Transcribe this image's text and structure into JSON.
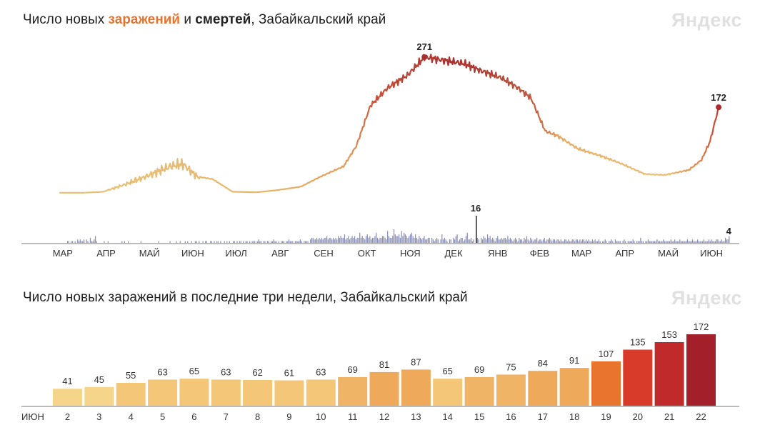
{
  "top_chart": {
    "title_part1": "Число новых ",
    "title_hl1": "заражений",
    "title_part2": " и ",
    "title_hl2": "смертей",
    "title_part3": ", Забайкальский край",
    "brand": "Яндекс",
    "infection_peak_label": "271",
    "infection_last_label": "172",
    "death_peak_label": "16",
    "death_last_label": "4",
    "months": [
      "МАР",
      "АПР",
      "МАЙ",
      "ИЮН",
      "ИЮЛ",
      "АВГ",
      "СЕН",
      "ОКТ",
      "НОЯ",
      "ДЕК",
      "ЯНВ",
      "ФЕВ",
      "МАР",
      "АПР",
      "МАЙ",
      "ИЮН"
    ]
  },
  "bottom_chart": {
    "title": "Число новых заражений в последние три недели, Забайкальский край",
    "brand": "Яндекс",
    "month_label": "ИЮН"
  },
  "colors": {
    "light": "#f5d58a",
    "mid": "#efa95a",
    "orange": "#e8742d",
    "red": "#d93b2b",
    "dark": "#a31f2a",
    "weekend": "#d13a2a",
    "deaths": "#8a8fb5"
  },
  "chart_data": [
    {
      "type": "line",
      "title": "Число новых заражений и смертей, Забайкальский край",
      "series": [
        {
          "name": "заражений",
          "x": [
            "2020-03-15",
            "2020-04-01",
            "2020-04-15",
            "2020-05-01",
            "2020-05-15",
            "2020-06-01",
            "2020-06-10",
            "2020-06-20",
            "2020-07-01",
            "2020-07-15",
            "2020-08-01",
            "2020-08-15",
            "2020-09-01",
            "2020-09-15",
            "2020-10-01",
            "2020-10-10",
            "2020-10-20",
            "2020-11-01",
            "2020-11-15",
            "2020-11-27",
            "2020-12-10",
            "2020-12-25",
            "2021-01-05",
            "2021-01-20",
            "2021-02-01",
            "2021-02-10",
            "2021-02-20",
            "2021-03-01",
            "2021-03-15",
            "2021-04-01",
            "2021-04-15",
            "2021-05-01",
            "2021-05-15",
            "2021-06-01",
            "2021-06-10",
            "2021-06-16",
            "2021-06-22"
          ],
          "values": [
            3,
            3,
            5,
            20,
            35,
            55,
            60,
            35,
            30,
            5,
            4,
            8,
            15,
            35,
            55,
            95,
            175,
            210,
            235,
            271,
            265,
            258,
            245,
            230,
            210,
            190,
            125,
            115,
            90,
            75,
            60,
            40,
            38,
            48,
            68,
            105,
            172
          ]
        },
        {
          "name": "смертей",
          "peak": 16,
          "last": 4,
          "values": [
            0,
            0,
            0,
            0,
            0,
            0,
            0,
            0,
            0,
            0,
            0,
            0,
            0,
            0,
            0,
            0,
            0,
            0,
            0,
            0,
            0,
            0,
            1,
            1,
            0,
            1,
            1,
            0,
            1,
            0,
            2,
            1,
            2,
            1,
            1,
            2,
            0,
            2,
            1,
            0,
            3,
            1,
            1,
            2,
            4,
            1,
            0,
            0,
            0,
            0,
            0,
            1,
            0,
            0,
            1,
            0,
            0,
            0,
            0,
            0,
            0,
            0,
            0,
            0,
            0,
            1,
            0,
            1,
            0,
            0,
            1,
            0,
            0,
            0,
            0,
            0,
            0,
            0,
            0,
            0,
            1,
            0,
            0,
            0,
            0,
            0,
            0,
            0,
            0,
            0,
            0,
            0,
            0,
            0,
            1,
            0,
            0,
            0,
            0,
            0,
            0,
            0,
            0,
            1,
            0,
            0,
            0,
            0,
            1,
            0,
            0,
            1,
            0,
            0,
            0,
            1,
            0,
            1,
            0,
            0,
            1,
            0,
            0,
            1,
            1,
            0,
            1,
            0,
            0,
            1,
            0,
            1,
            1,
            0,
            0,
            1,
            1,
            0,
            1,
            0,
            1,
            1,
            0,
            1,
            0,
            0,
            1,
            0,
            1,
            0,
            1,
            0,
            0,
            1,
            1,
            0,
            1,
            0,
            1,
            1,
            0,
            1,
            0,
            1,
            1,
            0,
            1,
            0,
            1,
            1,
            1,
            0,
            1,
            2,
            1,
            1,
            0,
            1,
            1,
            0,
            1,
            1,
            0,
            1,
            1,
            2,
            1,
            1,
            0,
            1,
            0,
            1,
            1,
            1,
            0,
            1,
            1,
            2,
            1,
            1,
            1,
            0,
            1,
            1,
            1,
            1,
            2,
            1,
            0,
            1,
            1,
            1,
            1,
            0,
            2,
            3,
            3,
            2,
            2,
            3,
            2,
            3,
            2,
            3,
            2,
            3,
            3,
            4,
            2,
            3,
            3,
            2,
            3,
            2,
            3,
            2,
            4,
            3,
            4,
            3,
            3,
            5,
            2,
            3,
            4,
            2,
            3,
            4,
            3,
            4,
            2,
            3,
            3,
            6,
            3,
            4,
            3,
            2,
            4,
            5,
            3,
            4,
            2,
            3,
            3,
            4,
            6,
            3,
            2,
            3,
            3,
            4,
            4,
            3,
            2,
            7,
            4,
            3,
            3,
            4,
            8,
            5,
            4,
            4,
            5,
            3,
            7,
            4,
            6,
            5,
            4,
            3,
            4,
            5,
            6,
            4,
            3,
            5,
            3,
            2,
            4,
            3,
            2,
            3,
            4,
            2,
            2,
            3,
            3,
            0,
            3,
            2,
            1,
            2,
            3,
            2,
            0,
            2,
            5,
            2,
            3,
            2,
            1,
            0,
            2,
            2,
            0,
            3,
            2,
            4,
            5,
            1,
            2,
            3,
            3,
            1,
            2,
            4,
            6,
            2,
            2,
            3,
            1,
            2,
            0,
            16,
            3,
            2,
            0,
            3,
            2,
            4,
            3,
            2,
            5,
            3,
            4,
            2,
            3,
            2,
            1,
            3,
            4,
            2,
            2,
            3,
            2,
            3,
            3,
            2,
            4,
            2,
            3,
            2,
            1,
            2,
            3,
            2,
            1,
            3,
            2,
            2,
            1,
            3,
            2,
            4,
            2,
            1,
            3,
            2,
            1,
            2,
            2,
            3,
            1,
            2,
            2,
            1,
            2,
            3,
            1,
            2,
            2,
            3,
            2,
            1,
            2,
            2,
            1,
            2,
            2,
            1,
            2,
            1,
            1,
            2,
            2,
            1,
            2,
            1,
            1,
            2,
            2,
            1,
            2,
            2,
            1,
            2,
            1,
            2,
            2,
            1,
            2,
            1,
            2,
            1,
            1,
            2,
            1,
            2,
            1,
            1,
            2,
            1,
            0,
            1,
            1,
            2,
            1,
            0,
            1,
            1,
            2,
            1,
            0,
            2,
            1,
            1,
            1,
            1,
            0,
            1,
            2,
            1,
            0,
            1,
            1,
            1,
            1,
            2,
            1,
            0,
            1,
            1,
            1,
            3,
            1,
            1,
            0,
            1,
            1,
            2,
            1,
            1,
            1,
            1,
            1,
            1,
            2,
            1,
            1,
            1,
            1,
            2,
            1,
            1,
            1,
            1,
            1,
            2,
            1,
            1,
            2,
            1,
            1,
            1,
            2,
            1,
            1,
            1,
            1,
            1,
            2,
            1,
            1,
            1,
            2,
            1,
            1,
            1,
            2,
            1,
            1,
            1,
            1,
            2,
            1,
            1,
            1,
            2,
            1,
            2,
            1,
            1,
            1,
            2,
            2,
            1,
            1,
            2,
            1,
            1,
            3,
            2,
            2,
            4
          ]
        }
      ],
      "xlabel": "",
      "ylabel": ""
    },
    {
      "type": "bar",
      "title": "Число новых заражений в последние три недели, Забайкальский край",
      "categories": [
        "2",
        "3",
        "4",
        "5",
        "6",
        "7",
        "8",
        "9",
        "10",
        "11",
        "12",
        "13",
        "14",
        "15",
        "16",
        "17",
        "18",
        "19",
        "20",
        "21",
        "22"
      ],
      "values": [
        41,
        45,
        55,
        63,
        65,
        63,
        62,
        61,
        63,
        69,
        81,
        87,
        65,
        69,
        75,
        84,
        91,
        107,
        135,
        153,
        172
      ],
      "weekend_categories": [
        "5",
        "6",
        "12",
        "13",
        "19",
        "20"
      ],
      "xlabel": "ИЮН",
      "ylabel": ""
    }
  ]
}
